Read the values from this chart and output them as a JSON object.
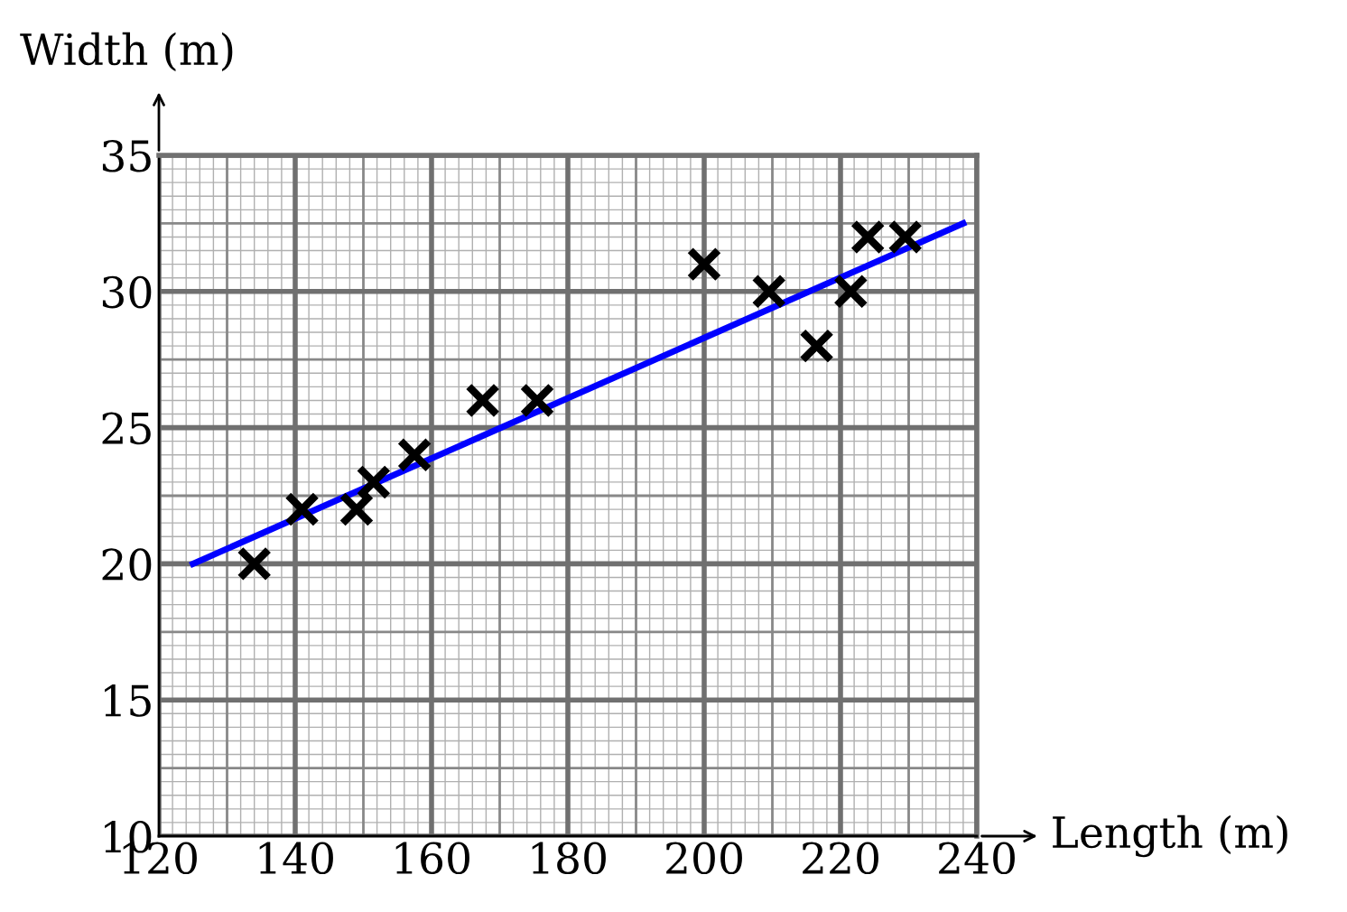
{
  "chart_data": {
    "type": "scatter",
    "xlabel": "Length (m)",
    "ylabel": "Width (m)",
    "xlim": [
      120,
      240
    ],
    "ylim": [
      10,
      35
    ],
    "xticks": [
      120,
      140,
      160,
      180,
      200,
      220,
      240
    ],
    "yticks": [
      10,
      15,
      20,
      25,
      30,
      35
    ],
    "grid": true,
    "series": [
      {
        "marker": "cross",
        "color": "#000000",
        "x": [
          134,
          141,
          149,
          151.5,
          157.5,
          167.5,
          175.5,
          200,
          209.5,
          216.5,
          221.5,
          224,
          229.5
        ],
        "values": [
          20,
          22,
          22,
          23,
          24,
          26,
          26,
          31,
          30,
          28,
          30,
          32,
          32
        ]
      },
      {
        "type": "line",
        "color": "#0000ff",
        "x": [
          125,
          238
        ],
        "values": [
          20,
          32.5
        ]
      }
    ]
  }
}
